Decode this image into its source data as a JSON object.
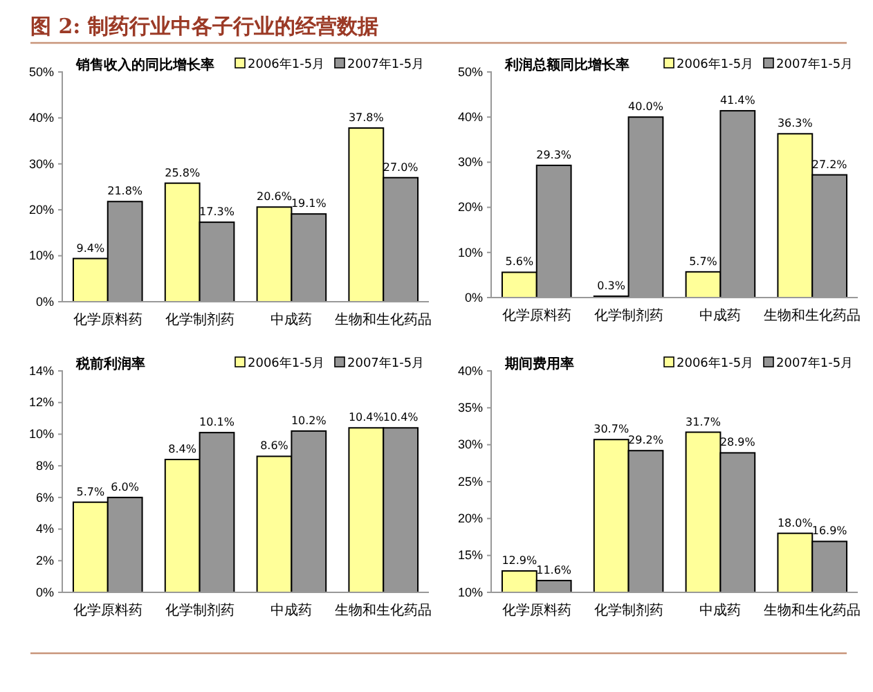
{
  "chart_data": [
    {
      "type": "bar",
      "title": "图 2:  制药行业中各子行业的经营数据",
      "subtitle": "销售收入的同比增长率",
      "categories": [
        "化学原料药",
        "化学制剂药",
        "中成药",
        "生物和生化药品"
      ],
      "series": [
        {
          "name": "2006年1-5月",
          "color": "#ffff99",
          "values": [
            9.4,
            25.8,
            20.6,
            37.8
          ],
          "value_labels": [
            "9.4%",
            "25.8%",
            "20.6%",
            "37.8%"
          ]
        },
        {
          "name": "2007年1-5月",
          "color": "#969696",
          "values": [
            21.8,
            17.3,
            19.1,
            27.0
          ],
          "value_labels": [
            "21.8%",
            "17.3%",
            "19.1%",
            "27.0%"
          ]
        }
      ],
      "ylim": [
        0,
        50
      ],
      "yticks": [
        {
          "value": 0,
          "label": "0%"
        },
        {
          "value": 10,
          "label": "10%"
        },
        {
          "value": 20,
          "label": "20%"
        },
        {
          "value": 30,
          "label": "30%"
        },
        {
          "value": 40,
          "label": "40%"
        },
        {
          "value": 50,
          "label": "50%"
        }
      ],
      "grid": false,
      "legend": "top right"
    },
    {
      "type": "bar",
      "title": "利润总额同比增长率",
      "categories": [
        "化学原料药",
        "化学制剂药",
        "中成药",
        "生物和生化药品"
      ],
      "series": [
        {
          "name": "2006年1-5月",
          "color": "#ffff99",
          "values": [
            5.6,
            0.3,
            5.7,
            36.3
          ],
          "value_labels": [
            "5.6%",
            "0.3%",
            "5.7%",
            "36.3%"
          ]
        },
        {
          "name": "2007年1-5月",
          "color": "#969696",
          "values": [
            29.3,
            40.0,
            41.4,
            27.2
          ],
          "value_labels": [
            "29.3%",
            "40.0%",
            "41.4%",
            "27.2%"
          ]
        }
      ],
      "ylim": [
        0,
        50
      ],
      "yticks": [
        {
          "value": 0,
          "label": "0%"
        },
        {
          "value": 10,
          "label": "10%"
        },
        {
          "value": 20,
          "label": "20%"
        },
        {
          "value": 30,
          "label": "30%"
        },
        {
          "value": 40,
          "label": "40%"
        },
        {
          "value": 50,
          "label": "50%"
        }
      ],
      "grid": false,
      "legend": "top right"
    },
    {
      "type": "bar",
      "title": "税前利润率",
      "categories": [
        "化学原料药",
        "化学制剂药",
        "中成药",
        "生物和生化药品"
      ],
      "series": [
        {
          "name": "2006年1-5月",
          "color": "#ffff99",
          "values": [
            5.7,
            8.4,
            8.6,
            10.4
          ],
          "value_labels": [
            "5.7%",
            "8.4%",
            "8.6%",
            "10.4%"
          ]
        },
        {
          "name": "2007年1-5月",
          "color": "#969696",
          "values": [
            6.0,
            10.1,
            10.2,
            10.4
          ],
          "value_labels": [
            "6.0%",
            "10.1%",
            "10.2%",
            "10.4%"
          ]
        }
      ],
      "ylim": [
        0,
        14
      ],
      "yticks": [
        {
          "value": 0,
          "label": "0%"
        },
        {
          "value": 2,
          "label": "2%"
        },
        {
          "value": 4,
          "label": "4%"
        },
        {
          "value": 6,
          "label": "6%"
        },
        {
          "value": 8,
          "label": "8%"
        },
        {
          "value": 10,
          "label": "10%"
        },
        {
          "value": 12,
          "label": "12%"
        },
        {
          "value": 14,
          "label": "14%"
        }
      ],
      "grid": false,
      "legend": "top right"
    },
    {
      "type": "bar",
      "title": "期间费用率",
      "categories": [
        "化学原料药",
        "化学制剂药",
        "中成药",
        "生物和生化药品"
      ],
      "series": [
        {
          "name": "2006年1-5月",
          "color": "#ffff99",
          "values": [
            12.9,
            30.7,
            31.7,
            18.0
          ],
          "value_labels": [
            "12.9%",
            "30.7%",
            "31.7%",
            "18.0%"
          ]
        },
        {
          "name": "2007年1-5月",
          "color": "#969696",
          "values": [
            11.6,
            29.2,
            28.9,
            16.9
          ],
          "value_labels": [
            "11.6%",
            "29.2%",
            "28.9%",
            "16.9%"
          ]
        }
      ],
      "ylim": [
        10,
        40
      ],
      "yticks": [
        {
          "value": 10,
          "label": "10%"
        },
        {
          "value": 15,
          "label": "15%"
        },
        {
          "value": 20,
          "label": "20%"
        },
        {
          "value": 25,
          "label": "25%"
        },
        {
          "value": 30,
          "label": "30%"
        },
        {
          "value": 35,
          "label": "35%"
        },
        {
          "value": 40,
          "label": "40%"
        }
      ],
      "grid": false,
      "legend": "top right"
    }
  ]
}
